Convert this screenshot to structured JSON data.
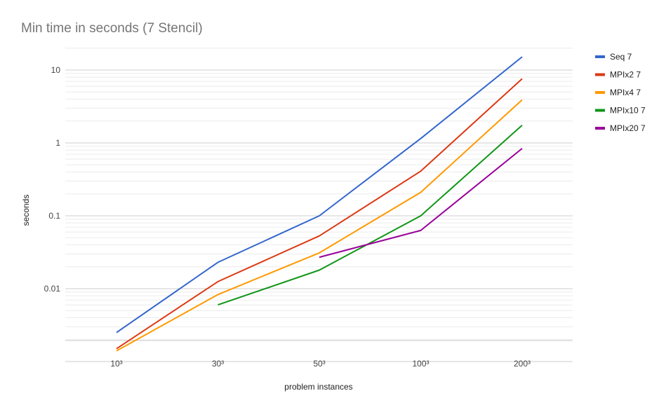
{
  "chart_data": {
    "type": "line",
    "title": "Min time in seconds (7 Stencil)",
    "xlabel": "problem instances",
    "ylabel": "seconds",
    "categories": [
      "10³",
      "30³",
      "50³",
      "100³",
      "200³"
    ],
    "y_scale": "log",
    "ylim": [
      0.001,
      20
    ],
    "y_ticks": [
      0.01,
      0.1,
      1,
      10
    ],
    "y_tick_labels": [
      "0.01",
      "0.1",
      "1",
      "10"
    ],
    "grid": true,
    "legend_position": "right",
    "series": [
      {
        "name": "Seq 7",
        "color": "#3366cc",
        "values": [
          0.0025,
          0.023,
          0.1,
          1.15,
          15.2
        ]
      },
      {
        "name": "MPIx2 7",
        "color": "#dc3912",
        "values": [
          0.0015,
          0.0125,
          0.053,
          0.41,
          7.6
        ]
      },
      {
        "name": "MPIx4 7",
        "color": "#ff9900",
        "values": [
          0.0014,
          0.0083,
          0.031,
          0.21,
          3.9
        ]
      },
      {
        "name": "MPIx10 7",
        "color": "#109618",
        "values": [
          null,
          0.006,
          0.018,
          0.1,
          1.75
        ]
      },
      {
        "name": "MPIx20 7",
        "color": "#990099",
        "values": [
          null,
          null,
          0.027,
          0.063,
          0.84
        ]
      }
    ]
  }
}
